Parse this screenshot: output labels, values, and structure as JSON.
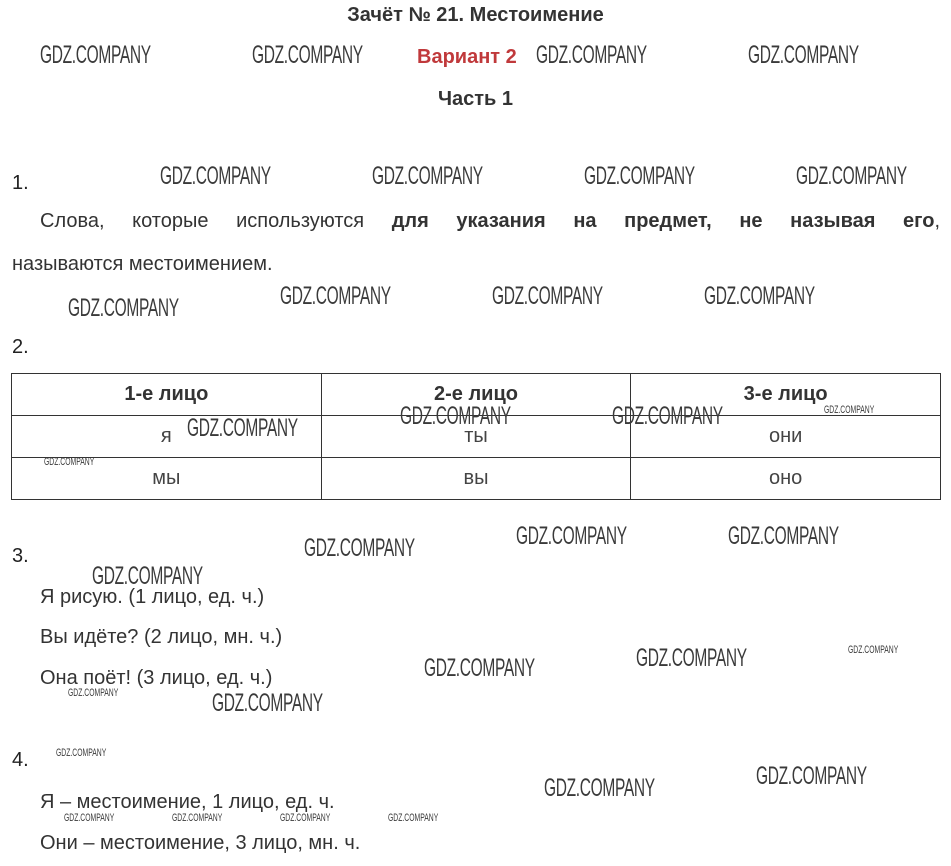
{
  "header": {
    "title": "Зачёт № 21. Местоимение",
    "variant": "Вариант 2",
    "part": "Часть 1"
  },
  "watermark": "GDZ.COMPANY",
  "task1": {
    "number": "1.",
    "text_before": "Слова, которые используются ",
    "text_bold": "для указания на предмет, не называя его",
    "text_after": ",",
    "line2": "называются местоимением."
  },
  "task2": {
    "number": "2.",
    "headers": [
      "1-е лицо",
      "2-е лицо",
      "3-е лицо"
    ],
    "rows": [
      [
        "я",
        "ты",
        "они"
      ],
      [
        "мы",
        "вы",
        "оно"
      ]
    ]
  },
  "task3": {
    "number": "3.",
    "lines": [
      "Я рисую. (1 лицо, ед. ч.)",
      "Вы идёте? (2 лицо, мн. ч.)",
      "Она поёт! (3 лицо, ед. ч.)"
    ]
  },
  "task4": {
    "number": "4.",
    "lines": [
      "Я – местоимение, 1 лицо, ед. ч.",
      "Они – местоимение, 3 лицо, мн. ч."
    ]
  },
  "colors": {
    "variant": "#c0393b",
    "text": "#333333"
  }
}
